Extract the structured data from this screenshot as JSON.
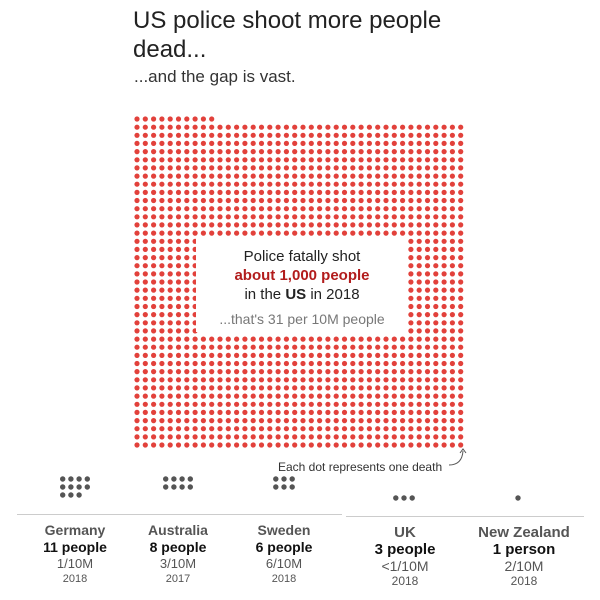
{
  "header": {
    "title": "US police shoot more people dead...",
    "subtitle": "...and the gap is vast."
  },
  "callout": {
    "line1": "Police fatally shot",
    "line2": "about 1,000 people",
    "line3_prefix": "in the",
    "line3_bold": "US",
    "line3_suffix": "in 2018",
    "line4": "...that's 31 per 10M people"
  },
  "note": "Each dot represents one death",
  "colors": {
    "us_dot": "#e2413b",
    "country_dot": "#555555",
    "highlight_text": "#b21c1c"
  },
  "chart_data": {
    "type": "dot-matrix",
    "title": "US police shoot more people dead...",
    "subtitle": "...and the gap is vast.",
    "unit": "Each dot represents one death",
    "main": {
      "country": "US",
      "deaths": "about 1,000",
      "rate": "31 per 10M",
      "year": "2018"
    },
    "countries": [
      {
        "name": "Germany",
        "count_label": "11 people",
        "deaths": 11,
        "rate": "1/10M",
        "year": "2018"
      },
      {
        "name": "Australia",
        "count_label": "8 people",
        "deaths": 8,
        "rate": "3/10M",
        "year": "2017"
      },
      {
        "name": "Sweden",
        "count_label": "6 people",
        "deaths": 6,
        "rate": "6/10M",
        "year": "2018"
      },
      {
        "name": "UK",
        "count_label": "3 people",
        "deaths": 3,
        "rate": "<1/10M",
        "year": "2018"
      },
      {
        "name": "New Zealand",
        "count_label": "1 person",
        "deaths": 1,
        "rate": "2/10M",
        "year": "2018"
      }
    ]
  }
}
